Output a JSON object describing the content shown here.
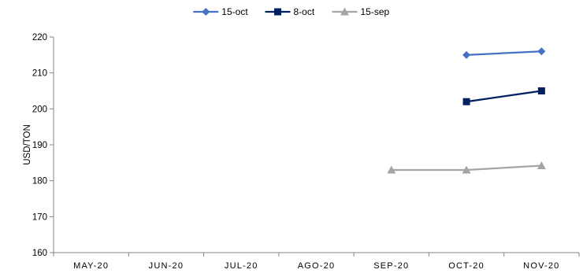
{
  "chart_data": {
    "type": "line",
    "categories": [
      "MAY-20",
      "JUN-20",
      "JUL-20",
      "AGO-20",
      "SEP-20",
      "OCT-20",
      "NOV-20"
    ],
    "ylabel": "USD/TON",
    "ylim": [
      160,
      220
    ],
    "yticks": [
      160,
      170,
      180,
      190,
      200,
      210,
      220
    ],
    "grid": false,
    "legend_position": "top",
    "series": [
      {
        "name": "15-oct",
        "color": "#4472C4",
        "marker": "diamond",
        "values": [
          null,
          null,
          null,
          null,
          null,
          215,
          216
        ]
      },
      {
        "name": "8-oct",
        "color": "#002060",
        "marker": "square",
        "values": [
          null,
          null,
          null,
          null,
          null,
          202,
          205
        ]
      },
      {
        "name": "15-sep",
        "color": "#A5A5A5",
        "marker": "triangle",
        "values": [
          null,
          null,
          null,
          null,
          183,
          183,
          184.2
        ]
      }
    ]
  }
}
